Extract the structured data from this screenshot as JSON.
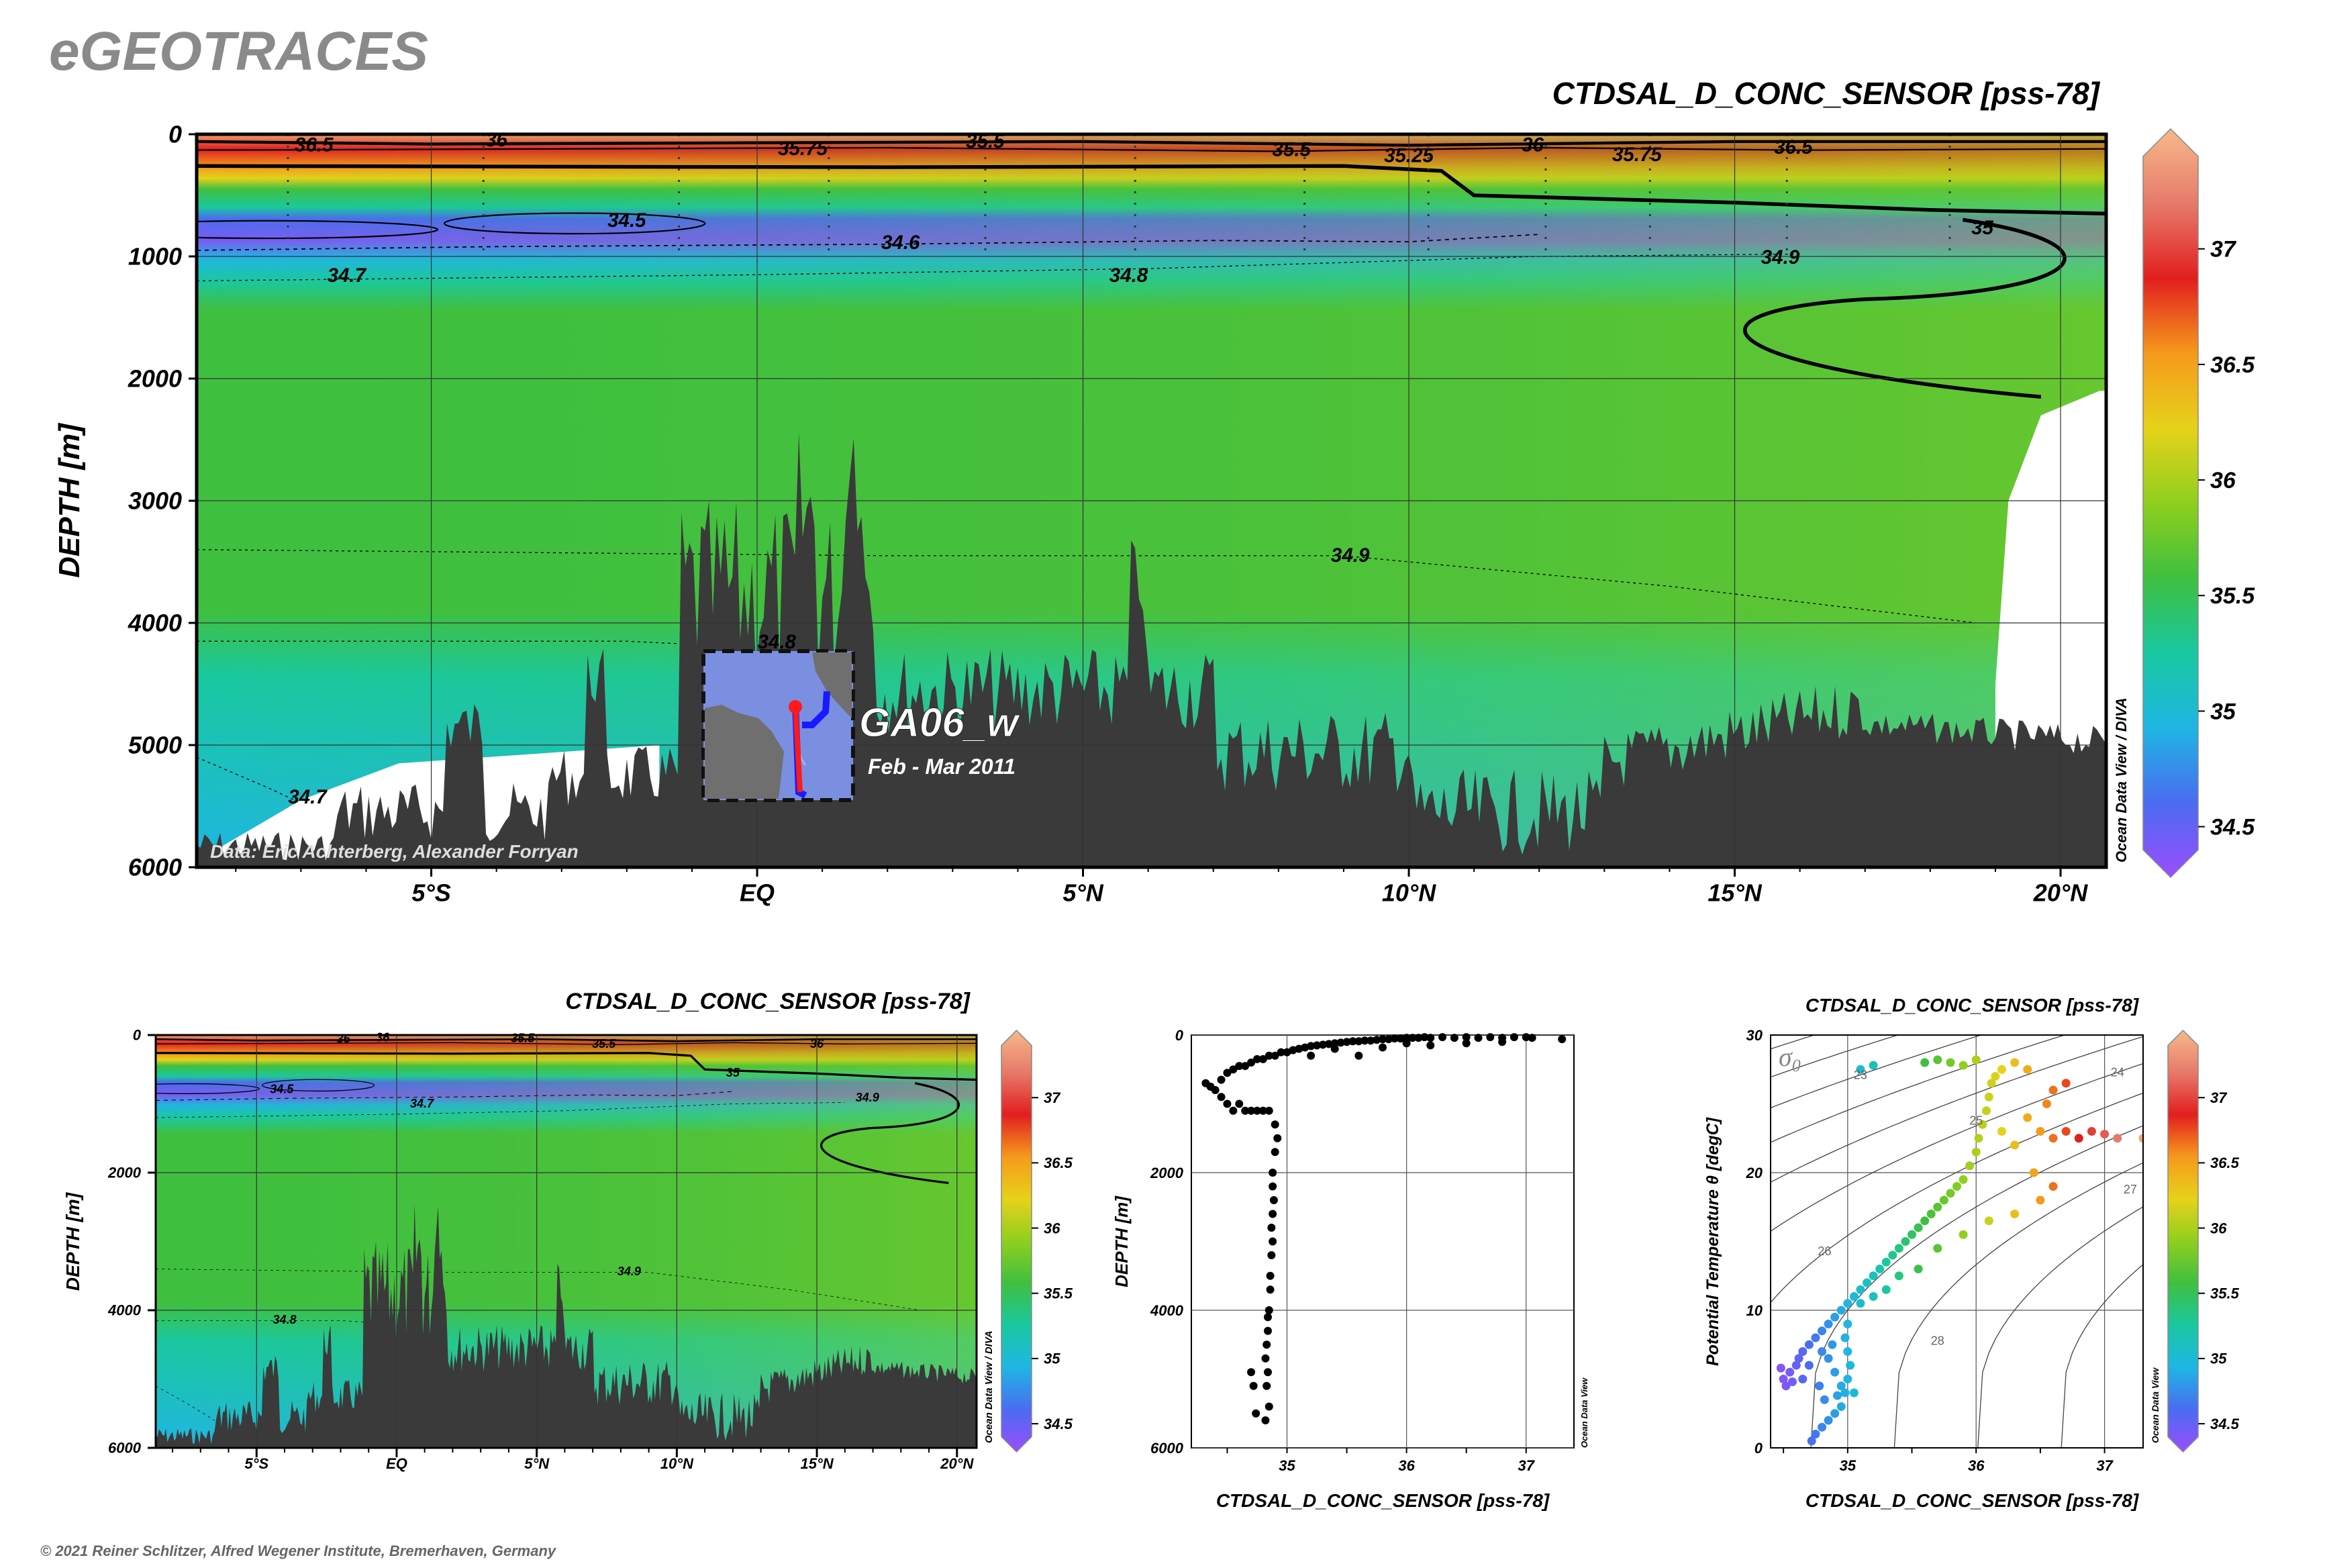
{
  "logo_text": "eGEOTRACES",
  "copyright": "© 2021 Reiner Schlitzer, Alfred Wegener Institute, Bremerhaven, Germany",
  "colorbar_range": [
    34.4,
    37.4
  ],
  "colorbar_ticks": [
    "34.5",
    "35",
    "35.5",
    "36",
    "36.5",
    "37"
  ],
  "colormap_stops": [
    "#9b4dff",
    "#4a6cf0",
    "#1fb6e3",
    "#19c8a0",
    "#3fbf3f",
    "#8fcf1e",
    "#e6d21a",
    "#f59a1c",
    "#e11f1f",
    "#e67a6a",
    "#f7b98a"
  ],
  "inset": {
    "section_name": "GA06_w",
    "period": "Feb - Mar 2011"
  },
  "chart_data": [
    {
      "type": "heatmap",
      "id": "main-section",
      "title": "CTDSAL_D_CONC_SENSOR [pss-78]",
      "ylabel": "DEPTH [m]",
      "xlabel": "",
      "side_label": "Ocean Data View / DIVA",
      "credit": "Data: Eric Achterberg, Alexander Forryan",
      "ylim": [
        6000,
        0
      ],
      "xlim": [
        -8.6,
        20.7
      ],
      "y_ticks": [
        "0",
        "1000",
        "2000",
        "3000",
        "4000",
        "5000",
        "6000"
      ],
      "x_ticks": [
        {
          "value": -5,
          "label": "5°S"
        },
        {
          "value": 0,
          "label": "EQ"
        },
        {
          "value": 5,
          "label": "5°N"
        },
        {
          "value": 10,
          "label": "10°N"
        },
        {
          "value": 15,
          "label": "15°N"
        },
        {
          "value": 20,
          "label": "20°N"
        }
      ],
      "contour_labels": [
        {
          "text": "36.5",
          "x": -6.8,
          "y": 80
        },
        {
          "text": "36",
          "x": -4.0,
          "y": 40
        },
        {
          "text": "35.75",
          "x": 0.7,
          "y": 110
        },
        {
          "text": "35.5",
          "x": 3.5,
          "y": 50
        },
        {
          "text": "35.5",
          "x": 8.2,
          "y": 120
        },
        {
          "text": "35.25",
          "x": 10.0,
          "y": 170
        },
        {
          "text": "36",
          "x": 11.9,
          "y": 80
        },
        {
          "text": "35.75",
          "x": 13.5,
          "y": 160
        },
        {
          "text": "36.5",
          "x": 15.9,
          "y": 100
        },
        {
          "text": "34.5",
          "x": -2.0,
          "y": 700
        },
        {
          "text": "34.6",
          "x": 2.2,
          "y": 880
        },
        {
          "text": "34.7",
          "x": -6.3,
          "y": 1150
        },
        {
          "text": "34.8",
          "x": 5.7,
          "y": 1150
        },
        {
          "text": "34.9",
          "x": 15.7,
          "y": 1000
        },
        {
          "text": "35",
          "x": 18.8,
          "y": 760
        },
        {
          "text": "34.9",
          "x": 9.1,
          "y": 3440
        },
        {
          "text": "34.8",
          "x": 0.3,
          "y": 4150
        },
        {
          "text": "34.7",
          "x": -6.9,
          "y": 5420
        }
      ],
      "inset_credit": ""
    },
    {
      "type": "heatmap",
      "id": "small-section",
      "title": "CTDSAL_D_CONC_SENSOR [pss-78]",
      "ylabel": "DEPTH [m]",
      "side_label": "Ocean Data View / DIVA",
      "ylim": [
        6000,
        0
      ],
      "xlim": [
        -8.6,
        20.7
      ],
      "y_ticks": [
        "0",
        "2000",
        "4000",
        "6000"
      ],
      "x_ticks": [
        {
          "value": -5,
          "label": "5°S"
        },
        {
          "value": 0,
          "label": "EQ"
        },
        {
          "value": 5,
          "label": "5°N"
        },
        {
          "value": 10,
          "label": "10°N"
        },
        {
          "value": 15,
          "label": "15°N"
        },
        {
          "value": 20,
          "label": "20°N"
        }
      ],
      "contour_labels": [
        {
          "text": "36",
          "x": -1.9,
          "y": 50
        },
        {
          "text": "36",
          "x": -0.5,
          "y": 30
        },
        {
          "text": "35.5",
          "x": 4.5,
          "y": 40
        },
        {
          "text": "35.5",
          "x": 7.4,
          "y": 120
        },
        {
          "text": "35",
          "x": 12.0,
          "y": 540
        },
        {
          "text": "36",
          "x": 15.0,
          "y": 120
        },
        {
          "text": "34.5",
          "x": -4.1,
          "y": 780
        },
        {
          "text": "34.7",
          "x": 0.9,
          "y": 990
        },
        {
          "text": "34.9",
          "x": 16.8,
          "y": 900
        },
        {
          "text": "34.9",
          "x": 8.3,
          "y": 3430
        },
        {
          "text": "34.8",
          "x": -4.0,
          "y": 4130
        }
      ]
    },
    {
      "type": "scatter",
      "id": "profile",
      "title": "",
      "xlabel": "CTDSAL_D_CONC_SENSOR [pss-78]",
      "ylabel": "DEPTH [m]",
      "side_label": "Ocean Data View",
      "xlim": [
        34.2,
        37.4
      ],
      "ylim": [
        6000,
        0
      ],
      "x_ticks": [
        "35",
        "36",
        "37"
      ],
      "y_ticks": [
        "0",
        "2000",
        "4000",
        "6000"
      ],
      "points": [
        [
          34.32,
          700
        ],
        [
          34.36,
          750
        ],
        [
          34.4,
          800
        ],
        [
          34.45,
          900
        ],
        [
          34.5,
          1000
        ],
        [
          34.55,
          1100
        ],
        [
          34.6,
          1000
        ],
        [
          34.65,
          1100
        ],
        [
          34.7,
          1100
        ],
        [
          34.75,
          1100
        ],
        [
          34.8,
          1100
        ],
        [
          34.85,
          1100
        ],
        [
          34.45,
          650
        ],
        [
          34.5,
          550
        ],
        [
          34.55,
          500
        ],
        [
          34.6,
          450
        ],
        [
          34.65,
          450
        ],
        [
          34.7,
          400
        ],
        [
          34.75,
          350
        ],
        [
          34.8,
          350
        ],
        [
          34.85,
          300
        ],
        [
          34.9,
          300
        ],
        [
          34.95,
          250
        ],
        [
          35.0,
          250
        ],
        [
          35.05,
          220
        ],
        [
          35.1,
          200
        ],
        [
          35.15,
          180
        ],
        [
          35.2,
          160
        ],
        [
          35.25,
          150
        ],
        [
          35.3,
          140
        ],
        [
          35.35,
          130
        ],
        [
          35.4,
          120
        ],
        [
          35.45,
          110
        ],
        [
          35.5,
          100
        ],
        [
          35.55,
          90
        ],
        [
          35.6,
          90
        ],
        [
          35.65,
          80
        ],
        [
          35.7,
          80
        ],
        [
          35.75,
          70
        ],
        [
          35.8,
          60
        ],
        [
          35.85,
          60
        ],
        [
          35.9,
          50
        ],
        [
          35.95,
          50
        ],
        [
          36.0,
          40
        ],
        [
          36.05,
          40
        ],
        [
          36.1,
          40
        ],
        [
          36.15,
          30
        ],
        [
          36.2,
          40
        ],
        [
          36.3,
          30
        ],
        [
          36.4,
          40
        ],
        [
          36.5,
          30
        ],
        [
          36.6,
          40
        ],
        [
          36.7,
          30
        ],
        [
          36.8,
          40
        ],
        [
          36.9,
          30
        ],
        [
          37.0,
          30
        ],
        [
          37.05,
          40
        ],
        [
          37.3,
          60
        ],
        [
          35.2,
          300
        ],
        [
          35.4,
          200
        ],
        [
          35.6,
          300
        ],
        [
          35.8,
          180
        ],
        [
          36.0,
          120
        ],
        [
          36.2,
          150
        ],
        [
          36.5,
          120
        ],
        [
          36.8,
          100
        ],
        [
          34.9,
          1300
        ],
        [
          34.92,
          1500
        ],
        [
          34.9,
          1700
        ],
        [
          34.88,
          2000
        ],
        [
          34.88,
          2200
        ],
        [
          34.89,
          2400
        ],
        [
          34.88,
          2600
        ],
        [
          34.87,
          2800
        ],
        [
          34.88,
          3000
        ],
        [
          34.87,
          3200
        ],
        [
          34.86,
          3500
        ],
        [
          34.86,
          3700
        ],
        [
          34.85,
          4000
        ],
        [
          34.84,
          4100
        ],
        [
          34.84,
          4300
        ],
        [
          34.83,
          4500
        ],
        [
          34.82,
          4700
        ],
        [
          34.84,
          4900
        ],
        [
          34.83,
          5100
        ],
        [
          34.74,
          5500
        ],
        [
          34.72,
          5100
        ],
        [
          34.7,
          4900
        ],
        [
          34.82,
          5600
        ],
        [
          34.85,
          5400
        ]
      ]
    },
    {
      "type": "scatter",
      "id": "ts-diagram",
      "title": "CTDSAL_D_CONC_SENSOR [pss-78]",
      "xlabel": "CTDSAL_D_CONC_SENSOR [pss-78]",
      "ylabel": "Potential Temperature θ [degC]",
      "side_label": "Ocean Data View",
      "legend_symbol": "σ",
      "legend_subscript": "0",
      "xlim": [
        34.4,
        37.3
      ],
      "ylim": [
        0,
        30
      ],
      "x_ticks": [
        "35",
        "36",
        "37"
      ],
      "y_ticks": [
        "0",
        "10",
        "20",
        "30"
      ],
      "isopycnals": [
        "23",
        "24",
        "25",
        "26",
        "27",
        "28"
      ],
      "points": [
        [
          34.52,
          4.5
        ],
        [
          34.5,
          5.0
        ],
        [
          34.55,
          5.5
        ],
        [
          34.48,
          5.8
        ],
        [
          34.6,
          6.0
        ],
        [
          34.57,
          4.8
        ],
        [
          34.62,
          6.5
        ],
        [
          34.65,
          7.0
        ],
        [
          34.7,
          7.5
        ],
        [
          34.75,
          8.0
        ],
        [
          34.8,
          8.5
        ],
        [
          34.85,
          9.0
        ],
        [
          34.9,
          9.5
        ],
        [
          34.95,
          10.0
        ],
        [
          35.0,
          10.5
        ],
        [
          35.05,
          11.0
        ],
        [
          35.1,
          11.5
        ],
        [
          35.15,
          12.0
        ],
        [
          35.2,
          12.5
        ],
        [
          35.25,
          13.0
        ],
        [
          35.3,
          13.5
        ],
        [
          35.35,
          14.0
        ],
        [
          35.4,
          14.5
        ],
        [
          35.45,
          15.0
        ],
        [
          35.5,
          15.5
        ],
        [
          35.55,
          16.0
        ],
        [
          35.6,
          16.5
        ],
        [
          35.65,
          17.0
        ],
        [
          35.7,
          17.5
        ],
        [
          35.75,
          18.0
        ],
        [
          35.8,
          18.5
        ],
        [
          35.85,
          19.0
        ],
        [
          35.9,
          19.5
        ],
        [
          35.95,
          20.5
        ],
        [
          36.0,
          21.5
        ],
        [
          36.02,
          22.5
        ],
        [
          36.05,
          23.5
        ],
        [
          36.08,
          24.5
        ],
        [
          36.1,
          25.5
        ],
        [
          36.12,
          26.5
        ],
        [
          36.15,
          27.0
        ],
        [
          36.2,
          27.5
        ],
        [
          36.3,
          28.0
        ],
        [
          35.6,
          28.0
        ],
        [
          35.7,
          28.2
        ],
        [
          35.8,
          28.0
        ],
        [
          35.9,
          27.8
        ],
        [
          36.0,
          28.2
        ],
        [
          35.2,
          27.8
        ],
        [
          35.1,
          27.5
        ],
        [
          36.4,
          24.0
        ],
        [
          36.5,
          23.0
        ],
        [
          36.6,
          22.5
        ],
        [
          36.7,
          23.0
        ],
        [
          36.8,
          22.5
        ],
        [
          36.9,
          23.0
        ],
        [
          37.0,
          22.8
        ],
        [
          37.1,
          22.5
        ],
        [
          37.3,
          22.5
        ],
        [
          36.55,
          25.0
        ],
        [
          36.6,
          26.0
        ],
        [
          36.7,
          26.5
        ],
        [
          36.4,
          27.5
        ],
        [
          36.2,
          23.0
        ],
        [
          36.3,
          22.0
        ],
        [
          36.45,
          20.0
        ],
        [
          36.6,
          19.0
        ],
        [
          36.5,
          18.0
        ],
        [
          36.3,
          17.0
        ],
        [
          36.1,
          16.5
        ],
        [
          35.9,
          15.5
        ],
        [
          35.7,
          14.5
        ],
        [
          35.55,
          13.0
        ],
        [
          35.4,
          12.5
        ],
        [
          35.3,
          11.5
        ],
        [
          35.2,
          11.0
        ],
        [
          35.1,
          10.5
        ],
        [
          35.0,
          9.0
        ],
        [
          34.98,
          8.0
        ],
        [
          35.0,
          7.0
        ],
        [
          35.02,
          6.0
        ],
        [
          35.0,
          5.0
        ],
        [
          34.98,
          4.0
        ],
        [
          34.95,
          3.0
        ],
        [
          34.9,
          2.5
        ],
        [
          34.85,
          2.0
        ],
        [
          34.8,
          1.5
        ],
        [
          34.75,
          1.0
        ],
        [
          34.72,
          0.5
        ],
        [
          34.9,
          5.5
        ],
        [
          34.85,
          6.5
        ],
        [
          34.8,
          7.0
        ],
        [
          34.78,
          4.5
        ],
        [
          34.82,
          3.5
        ],
        [
          34.95,
          4.5
        ],
        [
          34.92,
          3.8
        ],
        [
          35.05,
          4.0
        ],
        [
          34.88,
          7.5
        ],
        [
          34.7,
          6.0
        ],
        [
          34.65,
          5.0
        ]
      ]
    }
  ]
}
